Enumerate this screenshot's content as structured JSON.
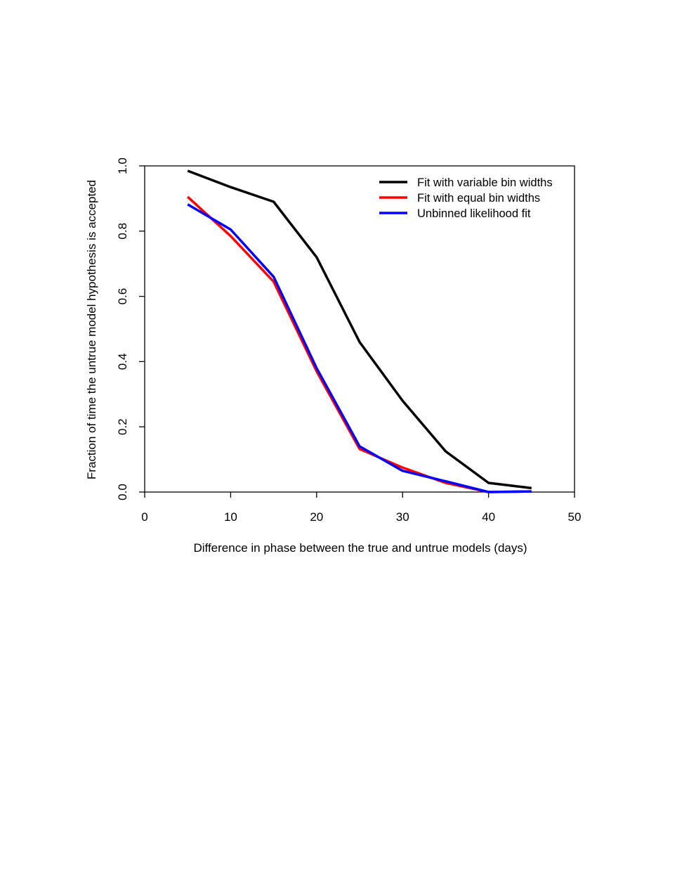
{
  "chart_data": {
    "type": "line",
    "title": "",
    "xlabel": "Difference in phase between the true and untrue models (days)",
    "ylabel": "Fraction of time the untrue model hypothesis is accepted",
    "xlim": [
      0,
      50
    ],
    "ylim": [
      0,
      1.0
    ],
    "xticks": [
      0,
      10,
      20,
      30,
      40,
      50
    ],
    "xtick_labels": [
      "0",
      "10",
      "20",
      "30",
      "40",
      "50"
    ],
    "yticks": [
      0,
      0.2,
      0.4,
      0.6,
      0.8,
      1.0
    ],
    "ytick_labels": [
      "0.0",
      "0.2",
      "0.4",
      "0.6",
      "0.8",
      "1.0"
    ],
    "grid": false,
    "legend_position": "top-right",
    "x": [
      5,
      10,
      15,
      20,
      25,
      30,
      35,
      40,
      45
    ],
    "series": [
      {
        "name": "Fit with variable bin widths",
        "color": "#000000",
        "values": [
          0.985,
          0.935,
          0.89,
          0.72,
          0.46,
          0.28,
          0.125,
          0.028,
          0.012
        ]
      },
      {
        "name": "Fit with equal bin widths",
        "color": "#ff0000",
        "values": [
          0.905,
          0.785,
          0.645,
          0.37,
          0.132,
          0.075,
          0.028,
          0.0,
          0.002
        ]
      },
      {
        "name": "Unbinned likelihood fit",
        "color": "#0000ff",
        "values": [
          0.882,
          0.805,
          0.66,
          0.38,
          0.14,
          0.065,
          0.033,
          0.0,
          0.002
        ]
      }
    ]
  }
}
